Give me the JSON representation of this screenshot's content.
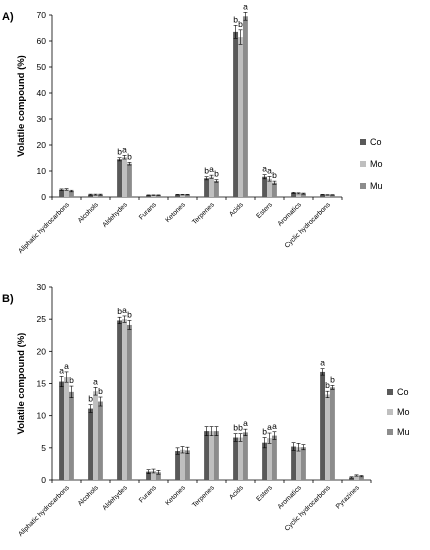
{
  "chart_data": [
    {
      "type": "bar",
      "panel_label": "A)",
      "ylabel": "Volatile compound (%)",
      "ylim": [
        0,
        70
      ],
      "yticks": [
        0,
        10,
        20,
        30,
        40,
        50,
        60,
        70
      ],
      "legend": {
        "placement": "right",
        "entries": [
          "Co",
          "Mo",
          "Mu"
        ]
      },
      "categories": [
        "Aliphatic hydrocarbons",
        "Alcohols",
        "Aldehydes",
        "Furans",
        "Ketones",
        "Terpenes",
        "Acids",
        "Esters",
        "Aromatics",
        "Cyclic hydrocarbons"
      ],
      "series": [
        {
          "name": "Co",
          "values": [
            2.8,
            0.9,
            14.5,
            0.7,
            0.9,
            7.2,
            63.5,
            7.8,
            1.6,
            0.9
          ],
          "errors": [
            0.3,
            0.2,
            0.6,
            0.1,
            0.1,
            0.6,
            2.5,
            0.8,
            0.2,
            0.1
          ],
          "letters": [
            "",
            "",
            "b",
            "",
            "",
            "b",
            "b",
            "a",
            "",
            ""
          ]
        },
        {
          "name": "Mo",
          "values": [
            2.9,
            0.9,
            15.3,
            0.7,
            0.9,
            7.8,
            61.5,
            7.0,
            1.4,
            0.8
          ],
          "errors": [
            0.3,
            0.2,
            0.7,
            0.1,
            0.1,
            0.6,
            2.8,
            0.9,
            0.2,
            0.1
          ],
          "letters": [
            "",
            "",
            "a",
            "",
            "",
            "a",
            "b",
            "a",
            "",
            ""
          ]
        },
        {
          "name": "Mu",
          "values": [
            2.3,
            0.9,
            12.8,
            0.7,
            0.9,
            6.2,
            69.5,
            5.5,
            1.3,
            0.8
          ],
          "errors": [
            0.3,
            0.2,
            0.5,
            0.1,
            0.1,
            0.5,
            1.5,
            0.6,
            0.2,
            0.1
          ],
          "letters": [
            "",
            "",
            "b",
            "",
            "",
            "b",
            "a",
            "b",
            "",
            ""
          ]
        }
      ]
    },
    {
      "type": "bar",
      "panel_label": "B)",
      "ylabel": "Volatile compound (%)",
      "ylim": [
        0,
        30
      ],
      "yticks": [
        0,
        5,
        10,
        15,
        20,
        25,
        30
      ],
      "legend": {
        "placement": "right",
        "entries": [
          "Co",
          "Mo",
          "Mu"
        ]
      },
      "categories": [
        "Aliphatic hydrocarbons",
        "Alcohols",
        "Aldehydes",
        "Furans",
        "Ketones",
        "Terpenes",
        "Acids",
        "Esters",
        "Aromatics",
        "Cyclic hydrocarbons",
        "Pyrazines"
      ],
      "series": [
        {
          "name": "Co",
          "values": [
            15.3,
            11.1,
            24.8,
            1.3,
            4.5,
            7.6,
            6.6,
            5.8,
            5.2,
            16.8,
            0.4
          ],
          "errors": [
            0.8,
            0.6,
            0.5,
            0.3,
            0.5,
            0.7,
            0.6,
            0.8,
            0.6,
            0.5,
            0.1
          ],
          "letters": [
            "a",
            "b",
            "b",
            "",
            "",
            "",
            "b",
            "b",
            "",
            "a",
            ""
          ]
        },
        {
          "name": "Mo",
          "values": [
            16.0,
            13.8,
            25.0,
            1.4,
            4.7,
            7.6,
            6.6,
            6.5,
            5.1,
            13.3,
            0.7
          ],
          "errors": [
            0.8,
            0.6,
            0.5,
            0.3,
            0.5,
            0.7,
            0.6,
            0.8,
            0.6,
            0.5,
            0.1
          ],
          "letters": [
            "a",
            "a",
            "a",
            "",
            "",
            "",
            "b",
            "a",
            "",
            "b",
            ""
          ]
        },
        {
          "name": "Mu",
          "values": [
            13.7,
            12.2,
            24.1,
            1.2,
            4.6,
            7.6,
            7.4,
            6.9,
            5.1,
            14.4,
            0.6
          ],
          "errors": [
            0.9,
            0.7,
            0.7,
            0.3,
            0.5,
            0.7,
            0.5,
            0.6,
            0.4,
            0.3,
            0.1
          ],
          "letters": [
            "b",
            "b",
            "b",
            "",
            "",
            "",
            "a",
            "a",
            "",
            "b",
            ""
          ]
        }
      ]
    }
  ],
  "colors": {
    "Co": "#595959",
    "Mo": "#bfbfbf",
    "Mu": "#8c8c8c"
  }
}
